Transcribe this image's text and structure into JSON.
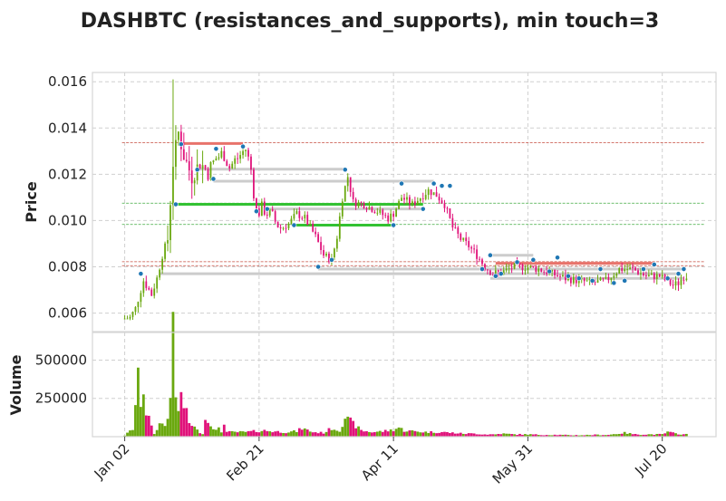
{
  "chart_data": {
    "type": "candlestick",
    "title": "DASHBTC (resistances_and_supports), min touch=3",
    "price_panel": {
      "ylabel": "Price",
      "ylim": [
        0.0052,
        0.0164
      ],
      "yticks": [
        "0.006",
        "0.008",
        "0.010",
        "0.012",
        "0.014",
        "0.016"
      ],
      "ytick_values": [
        0.006,
        0.008,
        0.01,
        0.012,
        0.014,
        0.016
      ],
      "grid": true
    },
    "volume_panel": {
      "ylabel": "Volume",
      "ylim": [
        0,
        680000
      ],
      "yticks": [
        "250000",
        "500000"
      ],
      "ytick_values": [
        250000,
        500000
      ],
      "grid": true
    },
    "x_axis": {
      "tick_labels": [
        "Jan 02",
        "Feb 21",
        "Apr 11",
        "May 31",
        "Jul 20"
      ],
      "tick_positions": [
        0,
        50,
        100,
        150,
        200
      ],
      "xlim": [
        -12,
        220
      ]
    },
    "colors": {
      "up": "#6aa80f",
      "down": "#e0127a",
      "marker": "#1f77b4",
      "resistance": "#e8736b",
      "support": "#33c233",
      "range": "#cccccc",
      "hline_red": "#c0392b",
      "hline_green": "#2aa02a"
    },
    "price_path": [
      [
        0,
        0.00575
      ],
      [
        3,
        0.0058
      ],
      [
        5,
        0.0062
      ],
      [
        8,
        0.0074
      ],
      [
        11,
        0.0068
      ],
      [
        13,
        0.0075
      ],
      [
        15,
        0.0085
      ],
      [
        17,
        0.0092
      ],
      [
        19,
        0.0125
      ],
      [
        21,
        0.0138
      ],
      [
        23,
        0.0128
      ],
      [
        26,
        0.0119
      ],
      [
        29,
        0.0125
      ],
      [
        32,
        0.0121
      ],
      [
        35,
        0.0127
      ],
      [
        38,
        0.0129
      ],
      [
        40,
        0.0123
      ],
      [
        43,
        0.0127
      ],
      [
        46,
        0.0131
      ],
      [
        48,
        0.0122
      ],
      [
        50,
        0.0104
      ],
      [
        53,
        0.0105
      ],
      [
        56,
        0.0101
      ],
      [
        59,
        0.0097
      ],
      [
        62,
        0.00985
      ],
      [
        65,
        0.0103
      ],
      [
        68,
        0.0101
      ],
      [
        70,
        0.0097
      ],
      [
        72,
        0.0093
      ],
      [
        75,
        0.0085
      ],
      [
        78,
        0.0083
      ],
      [
        80,
        0.0093
      ],
      [
        82,
        0.011
      ],
      [
        84,
        0.0119
      ],
      [
        86,
        0.0108
      ],
      [
        90,
        0.0107
      ],
      [
        95,
        0.0104
      ],
      [
        99,
        0.0101
      ],
      [
        101,
        0.0103
      ],
      [
        104,
        0.011
      ],
      [
        108,
        0.0107
      ],
      [
        111,
        0.011
      ],
      [
        114,
        0.0113
      ],
      [
        117,
        0.0111
      ],
      [
        120,
        0.0107
      ],
      [
        123,
        0.0097
      ],
      [
        126,
        0.0092
      ],
      [
        129,
        0.0089
      ],
      [
        132,
        0.0085
      ],
      [
        135,
        0.008
      ],
      [
        138,
        0.0077
      ],
      [
        142,
        0.0078
      ],
      [
        146,
        0.008
      ],
      [
        150,
        0.008
      ],
      [
        155,
        0.0079
      ],
      [
        160,
        0.0077
      ],
      [
        165,
        0.0075
      ],
      [
        170,
        0.0074
      ],
      [
        175,
        0.0073
      ],
      [
        180,
        0.0074
      ],
      [
        185,
        0.0079
      ],
      [
        190,
        0.0079
      ],
      [
        195,
        0.0076
      ],
      [
        200,
        0.0076
      ],
      [
        205,
        0.0072
      ],
      [
        207,
        0.0073
      ],
      [
        209,
        0.0076
      ]
    ],
    "volume_peaks": [
      [
        0,
        8000
      ],
      [
        3,
        50000
      ],
      [
        5,
        365000
      ],
      [
        6,
        230000
      ],
      [
        7,
        310000
      ],
      [
        8,
        160000
      ],
      [
        9,
        120000
      ],
      [
        10,
        60000
      ],
      [
        11,
        20000
      ],
      [
        12,
        40000
      ],
      [
        13,
        110000
      ],
      [
        14,
        80000
      ],
      [
        15,
        70000
      ],
      [
        16,
        120000
      ],
      [
        17,
        310000
      ],
      [
        18,
        660000
      ],
      [
        19,
        240000
      ],
      [
        20,
        180000
      ],
      [
        21,
        260000
      ],
      [
        22,
        200000
      ],
      [
        23,
        150000
      ],
      [
        24,
        90000
      ],
      [
        25,
        80000
      ],
      [
        26,
        60000
      ],
      [
        27,
        40000
      ],
      [
        28,
        30000
      ],
      [
        29,
        20000
      ],
      [
        30,
        110000
      ],
      [
        31,
        100000
      ],
      [
        32,
        90000
      ],
      [
        33,
        60000
      ],
      [
        34,
        40000
      ],
      [
        35,
        50000
      ],
      [
        36,
        30000
      ],
      [
        37,
        100000
      ],
      [
        38,
        30000
      ],
      [
        40,
        30000
      ],
      [
        42,
        30000
      ],
      [
        45,
        30000
      ],
      [
        48,
        35000
      ],
      [
        52,
        40000
      ],
      [
        55,
        35000
      ],
      [
        60,
        30000
      ],
      [
        64,
        35000
      ],
      [
        66,
        55000
      ],
      [
        70,
        30000
      ],
      [
        74,
        25000
      ],
      [
        77,
        55000
      ],
      [
        80,
        40000
      ],
      [
        82,
        130000
      ],
      [
        83,
        110000
      ],
      [
        84,
        100000
      ],
      [
        86,
        70000
      ],
      [
        88,
        40000
      ],
      [
        92,
        30000
      ],
      [
        96,
        35000
      ],
      [
        100,
        45000
      ],
      [
        102,
        60000
      ],
      [
        104,
        40000
      ],
      [
        108,
        35000
      ],
      [
        112,
        30000
      ],
      [
        118,
        30000
      ],
      [
        122,
        25000
      ],
      [
        126,
        20000
      ],
      [
        130,
        20000
      ],
      [
        134,
        15000
      ],
      [
        138,
        15000
      ],
      [
        140,
        20000
      ],
      [
        145,
        15000
      ],
      [
        150,
        15000
      ],
      [
        155,
        12000
      ],
      [
        160,
        12000
      ],
      [
        165,
        10000
      ],
      [
        170,
        10000
      ],
      [
        175,
        12000
      ],
      [
        180,
        12000
      ],
      [
        186,
        25000
      ],
      [
        190,
        15000
      ],
      [
        200,
        15000
      ],
      [
        202,
        30000
      ],
      [
        205,
        20000
      ],
      [
        208,
        15000
      ]
    ],
    "markers": [
      [
        6,
        0.0077
      ],
      [
        19,
        0.0107
      ],
      [
        21,
        0.0133
      ],
      [
        27,
        0.0122
      ],
      [
        33,
        0.0118
      ],
      [
        34,
        0.0131
      ],
      [
        44,
        0.0132
      ],
      [
        49,
        0.0104
      ],
      [
        53,
        0.0105
      ],
      [
        63,
        0.0098
      ],
      [
        72,
        0.008
      ],
      [
        77,
        0.0083
      ],
      [
        82,
        0.0122
      ],
      [
        100,
        0.0098
      ],
      [
        103,
        0.0116
      ],
      [
        111,
        0.0105
      ],
      [
        115,
        0.0116
      ],
      [
        118,
        0.0115
      ],
      [
        121,
        0.0115
      ],
      [
        133,
        0.0079
      ],
      [
        136,
        0.0085
      ],
      [
        138,
        0.0076
      ],
      [
        140,
        0.0077
      ],
      [
        146,
        0.0082
      ],
      [
        152,
        0.0083
      ],
      [
        158,
        0.0078
      ],
      [
        161,
        0.0084
      ],
      [
        165,
        0.0076
      ],
      [
        169,
        0.0075
      ],
      [
        174,
        0.0074
      ],
      [
        177,
        0.0079
      ],
      [
        182,
        0.0073
      ],
      [
        186,
        0.0074
      ],
      [
        193,
        0.0079
      ],
      [
        197,
        0.0081
      ],
      [
        202,
        0.0075
      ],
      [
        206,
        0.0077
      ],
      [
        208,
        0.0079
      ]
    ],
    "segments": [
      {
        "kind": "resistance",
        "x0": 21,
        "x1": 44,
        "y": 0.01333
      },
      {
        "kind": "range",
        "x0": 27,
        "x1": 82,
        "y": 0.01222
      },
      {
        "kind": "range",
        "x0": 33,
        "x1": 115,
        "y": 0.0117
      },
      {
        "kind": "support",
        "x0": 19,
        "x1": 111,
        "y": 0.0107
      },
      {
        "kind": "range",
        "x0": 53,
        "x1": 111,
        "y": 0.0105
      },
      {
        "kind": "support",
        "x0": 63,
        "x1": 100,
        "y": 0.0098
      },
      {
        "kind": "range",
        "x0": 136,
        "x1": 152,
        "y": 0.0085
      },
      {
        "kind": "resistance",
        "x0": 138,
        "x1": 197,
        "y": 0.00815
      },
      {
        "kind": "range",
        "x0": 72,
        "x1": 208,
        "y": 0.0079
      },
      {
        "kind": "range",
        "x0": 13,
        "x1": 206,
        "y": 0.0077
      },
      {
        "kind": "range",
        "x0": 136,
        "x1": 208,
        "y": 0.0075
      }
    ],
    "hlines": [
      {
        "kind": "red",
        "y": 0.01337
      },
      {
        "kind": "green",
        "y": 0.01075
      },
      {
        "kind": "green",
        "y": 0.00983
      },
      {
        "kind": "red",
        "y": 0.00822
      },
      {
        "kind": "red",
        "y": 0.00805
      }
    ]
  }
}
